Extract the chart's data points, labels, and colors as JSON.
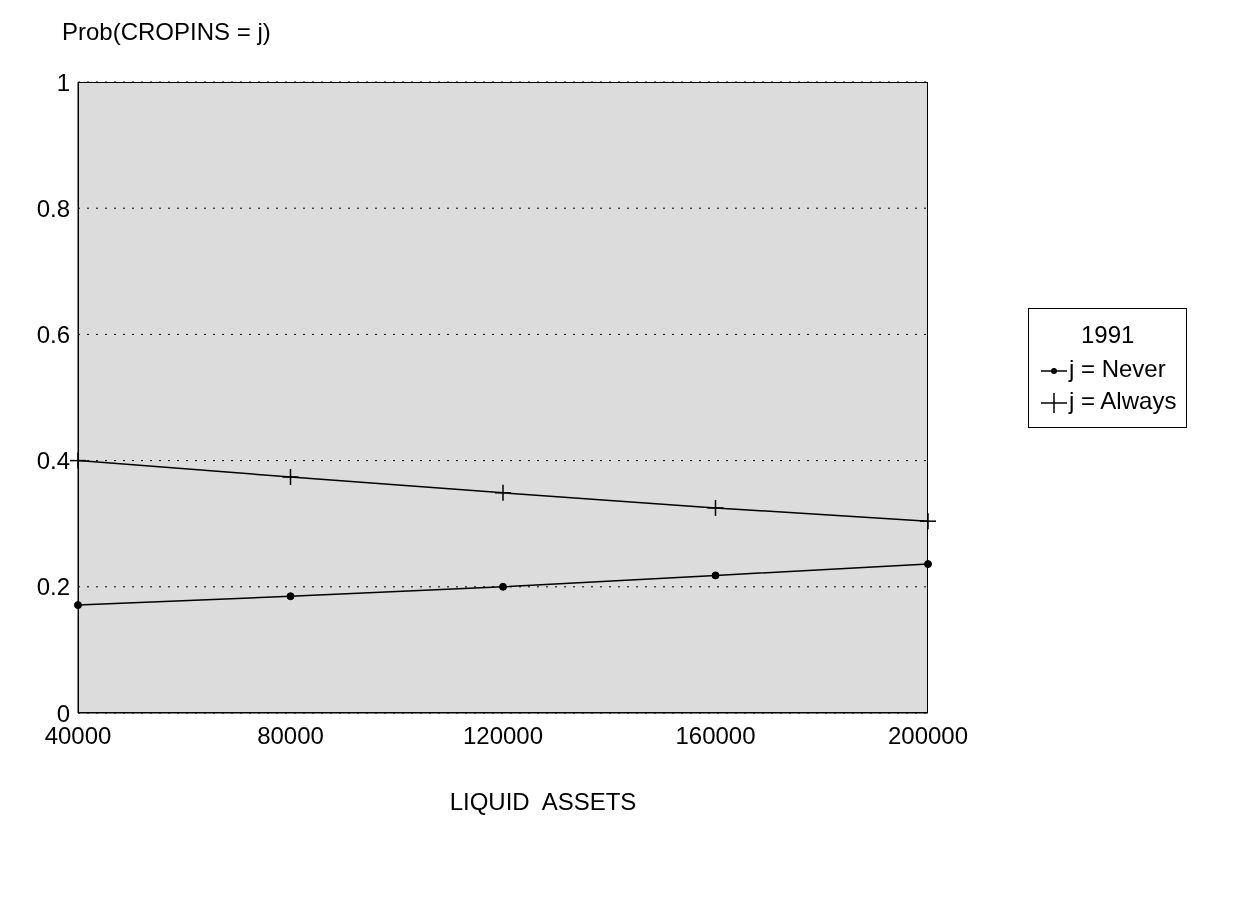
{
  "chart_data": {
    "type": "line",
    "ylabel": "Prob(CROPINS = j)",
    "xlabel": "LIQUID  ASSETS",
    "legend_title": "1991",
    "legend": "right",
    "grid": "y",
    "line_style": "solid",
    "x": [
      40000,
      80000,
      120000,
      160000,
      200000
    ],
    "series": [
      {
        "name": "j = Never",
        "color": "#000000",
        "marker": "circle",
        "values": [
          0.171,
          0.185,
          0.2,
          0.218,
          0.236
        ]
      },
      {
        "name": "j = Always",
        "color": "#000000",
        "marker": "cross",
        "values": [
          0.4,
          0.374,
          0.349,
          0.325,
          0.304
        ]
      }
    ],
    "xlim": [
      40000,
      200000
    ],
    "xticks": [
      40000,
      80000,
      120000,
      160000,
      200000
    ],
    "ylim": [
      0,
      1
    ],
    "yticks": [
      0,
      0.2,
      0.4,
      0.6,
      0.8,
      1
    ]
  }
}
